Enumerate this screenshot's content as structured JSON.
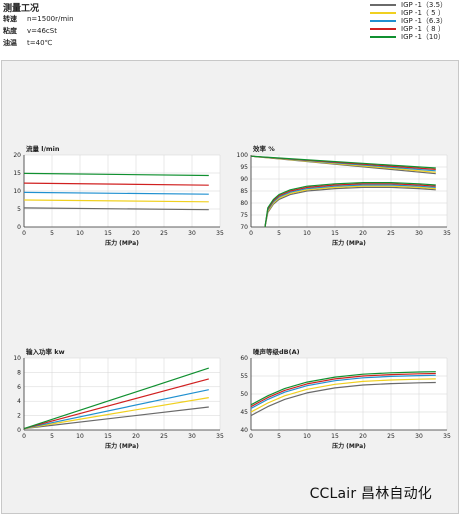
{
  "conditions": {
    "title": "测量工况",
    "items": [
      {
        "label": "转速",
        "value": "n=1500r/min"
      },
      {
        "label": "粘度",
        "value": "v=46cSt"
      },
      {
        "label": "油温",
        "value": "t=40℃"
      }
    ]
  },
  "legend": [
    {
      "label": "IGP -1（3.5）",
      "color": "#6a6a6a"
    },
    {
      "label": "IGP -1（ 5 ）",
      "color": "#f0d020"
    },
    {
      "label": "IGP -1（6.3）",
      "color": "#2090d0"
    },
    {
      "label": "IGP -1（ 8 ）",
      "color": "#d02020"
    },
    {
      "label": "IGP -1（10）",
      "color": "#109030"
    }
  ],
  "watermark": "CCLair 昌林自动化",
  "chart_data": [
    {
      "type": "line",
      "title": "流量  l/min",
      "xlabel": "压力 (MPa)",
      "ylabel": "",
      "xlim": [
        0,
        35
      ],
      "ylim": [
        0,
        20
      ],
      "xticks": [
        0,
        5,
        10,
        15,
        20,
        25,
        30,
        35
      ],
      "yticks": [
        0,
        5,
        10,
        15,
        20
      ],
      "x": [
        0,
        33
      ],
      "series": [
        {
          "name": "IGP -1（3.5）",
          "values": [
            5.3,
            4.8
          ]
        },
        {
          "name": "IGP -1（ 5 ）",
          "values": [
            7.5,
            7.0
          ]
        },
        {
          "name": "IGP -1（6.3）",
          "values": [
            9.6,
            9.1
          ]
        },
        {
          "name": "IGP -1（ 8 ）",
          "values": [
            12.2,
            11.6
          ]
        },
        {
          "name": "IGP -1（10）",
          "values": [
            14.9,
            14.3
          ]
        }
      ]
    },
    {
      "type": "line",
      "title": "效率 %",
      "xlabel": "压力 (MPa)",
      "ylabel": "",
      "xlim": [
        0,
        35
      ],
      "ylim": [
        70,
        100
      ],
      "xticks": [
        0,
        5,
        10,
        15,
        20,
        25,
        30,
        35
      ],
      "yticks": [
        70,
        75,
        80,
        85,
        90,
        95,
        100
      ],
      "x": [
        2.5,
        3,
        4,
        5,
        7,
        10,
        15,
        20,
        25,
        30,
        33
      ],
      "series": [
        {
          "name": "IGP -1（3.5）",
          "values": [
            70,
            76,
            79.5,
            81.5,
            83.5,
            85,
            86,
            86.5,
            86.5,
            86,
            85.5
          ]
        },
        {
          "name": "IGP -1（ 5 ）",
          "values": [
            70,
            76.5,
            80,
            82,
            84,
            85.5,
            86.5,
            87,
            87,
            86.5,
            86
          ]
        },
        {
          "name": "IGP -1（6.3）",
          "values": [
            70,
            77,
            80.5,
            82.5,
            84.5,
            86,
            87,
            87.5,
            87.5,
            87,
            86.5
          ]
        },
        {
          "name": "IGP -1（ 8 ）",
          "values": [
            70,
            77.5,
            81,
            83,
            85,
            86.5,
            87.5,
            88,
            88,
            87.5,
            87
          ]
        },
        {
          "name": "IGP -1（10）",
          "values": [
            70,
            78,
            81.5,
            83.5,
            85.5,
            87,
            88,
            88.5,
            88.5,
            88,
            87.5
          ]
        }
      ],
      "volumetric": {
        "x": [
          0,
          33
        ],
        "series": [
          {
            "name": "IGP -1（3.5）",
            "values": [
              99.5,
              92.2
            ]
          },
          {
            "name": "IGP -1（ 5 ）",
            "values": [
              99.5,
              92.8
            ]
          },
          {
            "name": "IGP -1（6.3）",
            "values": [
              99.5,
              93.4
            ]
          },
          {
            "name": "IGP -1（ 8 ）",
            "values": [
              99.5,
              94.0
            ]
          },
          {
            "name": "IGP -1（10）",
            "values": [
              99.5,
              94.6
            ]
          }
        ]
      }
    },
    {
      "type": "line",
      "title": "输入功率 kw",
      "xlabel": "压力 (MPa)",
      "ylabel": "",
      "xlim": [
        0,
        35
      ],
      "ylim": [
        0,
        10
      ],
      "xticks": [
        0,
        5,
        10,
        15,
        20,
        25,
        30,
        35
      ],
      "yticks": [
        0,
        2,
        4,
        6,
        8,
        10
      ],
      "x": [
        0,
        33
      ],
      "series": [
        {
          "name": "IGP -1（3.5）",
          "values": [
            0.2,
            3.2
          ]
        },
        {
          "name": "IGP -1（ 5 ）",
          "values": [
            0.2,
            4.5
          ]
        },
        {
          "name": "IGP -1（6.3）",
          "values": [
            0.2,
            5.6
          ]
        },
        {
          "name": "IGP -1（ 8 ）",
          "values": [
            0.2,
            7.1
          ]
        },
        {
          "name": "IGP -1（10）",
          "values": [
            0.2,
            8.6
          ]
        }
      ]
    },
    {
      "type": "line",
      "title": "噪声等级dB(A)",
      "xlabel": "压力 (MPa)",
      "ylabel": "",
      "xlim": [
        0,
        35
      ],
      "ylim": [
        40,
        60
      ],
      "xticks": [
        0,
        5,
        10,
        15,
        20,
        25,
        30,
        35
      ],
      "yticks": [
        40,
        45,
        50,
        55,
        60
      ],
      "x": [
        0,
        3,
        6,
        10,
        15,
        20,
        25,
        30,
        33
      ],
      "series": [
        {
          "name": "IGP -1（3.5）",
          "values": [
            44,
            46.5,
            48.5,
            50.3,
            51.7,
            52.5,
            52.9,
            53.1,
            53.2
          ]
        },
        {
          "name": "IGP -1（ 5 ）",
          "values": [
            45,
            47.5,
            49.5,
            51.3,
            52.7,
            53.5,
            53.9,
            54.1,
            54.2
          ]
        },
        {
          "name": "IGP -1（6.3）",
          "values": [
            46,
            48.5,
            50.5,
            52.3,
            53.7,
            54.5,
            54.9,
            55.1,
            55.2
          ]
        },
        {
          "name": "IGP -1（ 8 ）",
          "values": [
            46.5,
            49,
            51,
            52.8,
            54.2,
            55,
            55.4,
            55.6,
            55.7
          ]
        },
        {
          "name": "IGP -1（10）",
          "values": [
            47,
            49.5,
            51.5,
            53.3,
            54.7,
            55.5,
            55.9,
            56.1,
            56.2
          ]
        }
      ]
    }
  ]
}
